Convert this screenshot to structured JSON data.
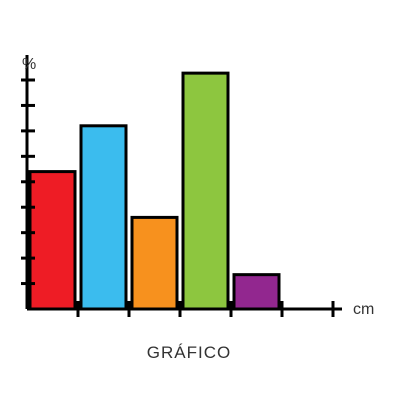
{
  "chart_data": {
    "type": "bar",
    "title": "GRÁFICO",
    "xlabel": "cm",
    "ylabel": "%",
    "ylim": [
      0,
      10
    ],
    "y_tick_count": 10,
    "x_tick_count": 6,
    "grid": false,
    "legend": "none",
    "values": [
      6,
      8,
      4,
      10.3,
      1.5
    ],
    "colors": [
      "#ee1c25",
      "#3bbcee",
      "#f7911e",
      "#8dc63f",
      "#92278f"
    ],
    "axis_color": "#000000"
  }
}
